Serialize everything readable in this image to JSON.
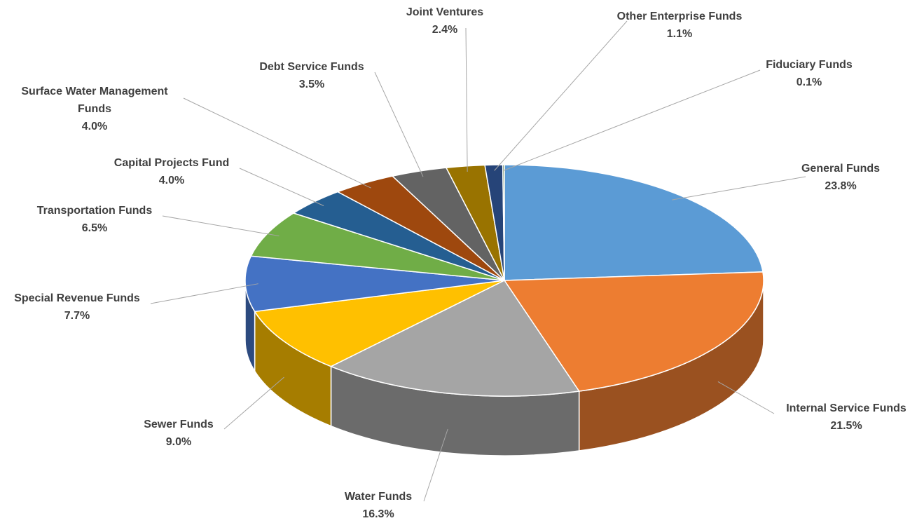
{
  "chart_data": {
    "type": "pie",
    "categories": [
      "General Funds",
      "Internal Service Funds",
      "Water Funds",
      "Sewer Funds",
      "Special Revenue Funds",
      "Transportation Funds",
      "Capital Projects Fund",
      "Surface Water Management Funds",
      "Debt Service Funds",
      "Joint Ventures",
      "Other Enterprise Funds",
      "Fiduciary Funds"
    ],
    "values": [
      23.8,
      21.5,
      16.3,
      9.0,
      7.7,
      6.5,
      4.0,
      4.0,
      3.5,
      2.4,
      1.1,
      0.1
    ],
    "value_labels": [
      "23.8%",
      "21.5%",
      "16.3%",
      "9.0%",
      "7.7%",
      "6.5%",
      "4.0%",
      "4.0%",
      "3.5%",
      "2.4%",
      "1.1%",
      "0.1%"
    ],
    "colors": [
      "#5b9bd5",
      "#ed7d31",
      "#a5a5a5",
      "#ffc000",
      "#4472c4",
      "#70ad47",
      "#255e91",
      "#9e480e",
      "#636363",
      "#997300",
      "#264478",
      "#43682b"
    ]
  }
}
